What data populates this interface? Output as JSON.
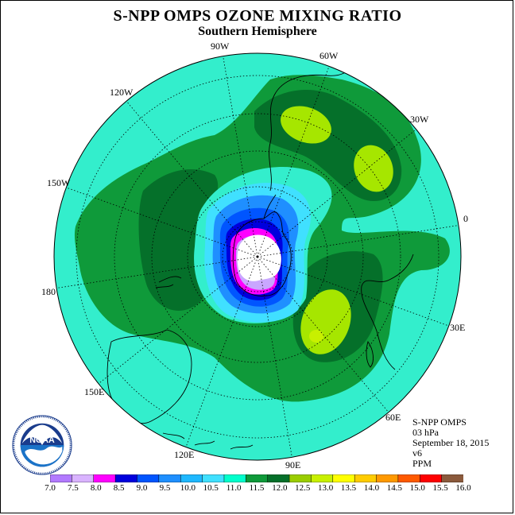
{
  "title": "S-NPP OMPS OZONE MIXING RATIO",
  "subtitle": "Southern Hemisphere",
  "longitude_labels": {
    "l90w": "90W",
    "l60w": "60W",
    "l30w": "30W",
    "l0": "0",
    "l30e": "30E",
    "l60e": "60E",
    "l90e": "90E",
    "l120e": "120E",
    "l150e": "150E",
    "l180": "180",
    "l150w": "150W",
    "l120w": "120W"
  },
  "info": {
    "instrument": "S-NPP OMPS",
    "level": "03 hPa",
    "date": "September 18, 2015",
    "version": "v6",
    "units": "PPM"
  },
  "logo": {
    "text": "NOAA",
    "icon": "noaa-logo-icon"
  },
  "colorbar": {
    "ticks": [
      "7.0",
      "7.5",
      "8.0",
      "8.5",
      "9.0",
      "9.5",
      "10.0",
      "10.5",
      "11.0",
      "11.5",
      "12.0",
      "12.5",
      "13.0",
      "13.5",
      "14.0",
      "14.5",
      "15.0",
      "15.5",
      "16.0"
    ],
    "colors": [
      "#b27aff",
      "#d9b3ff",
      "#ff00ff",
      "#0000dd",
      "#0055ff",
      "#1f8fff",
      "#1fb8ff",
      "#40e0ff",
      "#00ffcc",
      "#0f9a3a",
      "#05702a",
      "#9acd00",
      "#c8f000",
      "#ffff00",
      "#ffcc00",
      "#ff9900",
      "#ff5a00",
      "#ff0000",
      "#8b5a3c"
    ]
  },
  "map_colors": {
    "background_light": "#33eecc",
    "green_mid": "#0f9a3a",
    "green_dark": "#05702a",
    "yellow_green": "#a6e600",
    "light_blue": "#40e0ff",
    "mid_blue": "#1f8fff",
    "blue": "#0055ff",
    "dark_blue": "#0000dd",
    "magenta": "#ff00ff",
    "lavender": "#c9a6ff"
  }
}
